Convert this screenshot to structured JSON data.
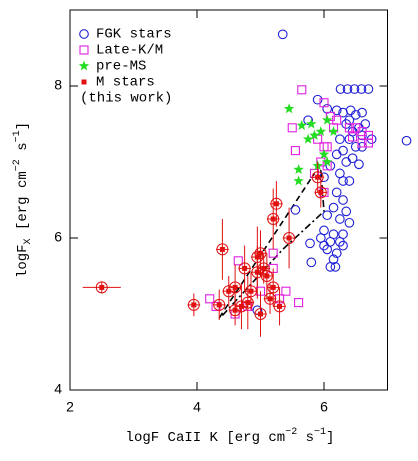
{
  "chart_data": {
    "type": "scatter",
    "xlabel": [
      "logF CaII K [erg cm",
      "−2",
      " s",
      "−1",
      "]"
    ],
    "ylabel": [
      "logF",
      "X",
      " [erg cm",
      "−2",
      " s",
      "−1",
      "]"
    ],
    "xlim": [
      2,
      7
    ],
    "ylim": [
      4,
      9
    ],
    "xticks": [
      2,
      4,
      6
    ],
    "yticks": [
      4,
      6,
      8
    ],
    "legend": "upper left",
    "series": [
      {
        "name": "FGK stars",
        "marker": "circle",
        "color": "#1f1fd6",
        "x": [
          5.35,
          6.26,
          6.37,
          6.48,
          6.59,
          6.7,
          5.9,
          5.75,
          6.05,
          6.2,
          6.3,
          6.42,
          6.5,
          6.6,
          6.35,
          6.45,
          6.55,
          6.25,
          6.4,
          6.6,
          6.5,
          6.3,
          6.75,
          7.3,
          6.2,
          6.45,
          6.6,
          6.35,
          6.55,
          6.1,
          6.0,
          6.25,
          6.4,
          6.2,
          6.3,
          6.15,
          6.35,
          6.05,
          6.25,
          6.4,
          6.0,
          6.15,
          6.3,
          6.1,
          6.25,
          6.05,
          6.2,
          6.3,
          6.15,
          5.8,
          6.1,
          6.18,
          6.0,
          5.95,
          6.3,
          5.55,
          4.95,
          6.4,
          6.65,
          5.78
        ],
        "values": [
          8.68,
          7.96,
          7.96,
          7.96,
          7.96,
          7.96,
          7.82,
          7.55,
          7.7,
          7.68,
          7.65,
          7.68,
          7.62,
          7.65,
          7.5,
          7.4,
          7.45,
          7.3,
          7.3,
          7.35,
          7.2,
          7.15,
          7.3,
          7.28,
          7.1,
          7.05,
          7.2,
          7.0,
          6.97,
          6.95,
          6.8,
          6.85,
          6.75,
          6.6,
          6.5,
          6.4,
          6.35,
          6.3,
          6.25,
          6.2,
          6.1,
          6.05,
          6.05,
          5.95,
          5.95,
          5.85,
          5.8,
          5.9,
          5.72,
          5.68,
          5.62,
          5.62,
          5.9,
          6.0,
          6.75,
          6.37,
          5.05,
          7.55,
          7.5,
          5.93
        ]
      },
      {
        "name": "Late-K/M",
        "marker": "square",
        "color": "#e020e0",
        "x": [
          5.65,
          5.55,
          5.5,
          6.0,
          6.1,
          6.2,
          6.4,
          6.5,
          6.45,
          6.6,
          6.7,
          6.6,
          6.7,
          6.0,
          5.9,
          5.95,
          5.85,
          6.05,
          6.0,
          4.2,
          4.3,
          4.65,
          4.8,
          5.0,
          5.2,
          5.3,
          5.6,
          5.2,
          4.6,
          5.4,
          6.05,
          6.15
        ],
        "values": [
          7.95,
          7.15,
          7.45,
          7.78,
          7.6,
          7.55,
          7.45,
          7.45,
          7.33,
          7.4,
          7.35,
          7.25,
          7.25,
          7.2,
          7.3,
          7.0,
          6.85,
          6.95,
          6.6,
          5.2,
          5.1,
          5.7,
          5.1,
          5.3,
          5.8,
          5.2,
          5.15,
          5.6,
          5.0,
          5.3,
          7.2,
          7.45
        ]
      },
      {
        "name": "pre-MS",
        "marker": "star",
        "color": "#22dd22",
        "x": [
          5.45,
          5.65,
          5.8,
          5.85,
          5.95,
          6.05,
          6.15,
          6.0,
          5.6,
          5.6,
          6.05,
          5.9,
          5.75
        ],
        "values": [
          7.7,
          7.48,
          7.5,
          7.35,
          7.4,
          7.55,
          7.4,
          7.1,
          6.9,
          6.75,
          7.0,
          6.95,
          7.3
        ]
      },
      {
        "name": "M stars",
        "note": "(this work)",
        "marker": "filled-square",
        "color": "#e01010",
        "x": [
          2.5,
          3.95,
          4.35,
          4.4,
          4.6,
          4.6,
          4.75,
          4.8,
          4.85,
          4.95,
          4.95,
          5.0,
          5.05,
          5.1,
          5.15,
          5.2,
          5.2,
          5.25,
          5.3,
          5.45,
          5.9,
          5.95,
          4.7,
          5.0,
          4.5
        ],
        "values": [
          5.35,
          5.12,
          5.12,
          5.85,
          5.05,
          5.35,
          5.6,
          5.15,
          5.3,
          5.55,
          5.75,
          5.8,
          5.6,
          5.5,
          5.2,
          5.35,
          6.25,
          6.45,
          5.1,
          6.0,
          6.8,
          6.6,
          5.1,
          5.0,
          5.3
        ],
        "yerr": [
          0.08,
          0.15,
          0.2,
          0.4,
          0.2,
          0.3,
          0.3,
          0.35,
          0.25,
          0.35,
          0.4,
          0.3,
          0.2,
          0.3,
          0.2,
          0.25,
          0.4,
          0.3,
          0.25,
          0.4,
          0.2,
          0.2,
          0.3,
          0.3,
          0.2
        ],
        "xerr": [
          0.3,
          0.1,
          0.1,
          0.1,
          0.1,
          0.1,
          0.1,
          0.1,
          0.1,
          0.1,
          0.1,
          0.1,
          0.1,
          0.1,
          0.1,
          0.1,
          0.1,
          0.1,
          0.1,
          0.1,
          0.1,
          0.1,
          0.1,
          0.1,
          0.1
        ]
      }
    ],
    "lines": [
      {
        "dash": "6 4",
        "x": [
          4.35,
          5.85
        ],
        "y": [
          4.95,
          6.85
        ]
      },
      {
        "dash": "7 3 2 3",
        "x": [
          4.4,
          5.35,
          6.0,
          5.95
        ],
        "y": [
          4.98,
          5.85,
          6.35,
          6.9
        ]
      }
    ]
  }
}
